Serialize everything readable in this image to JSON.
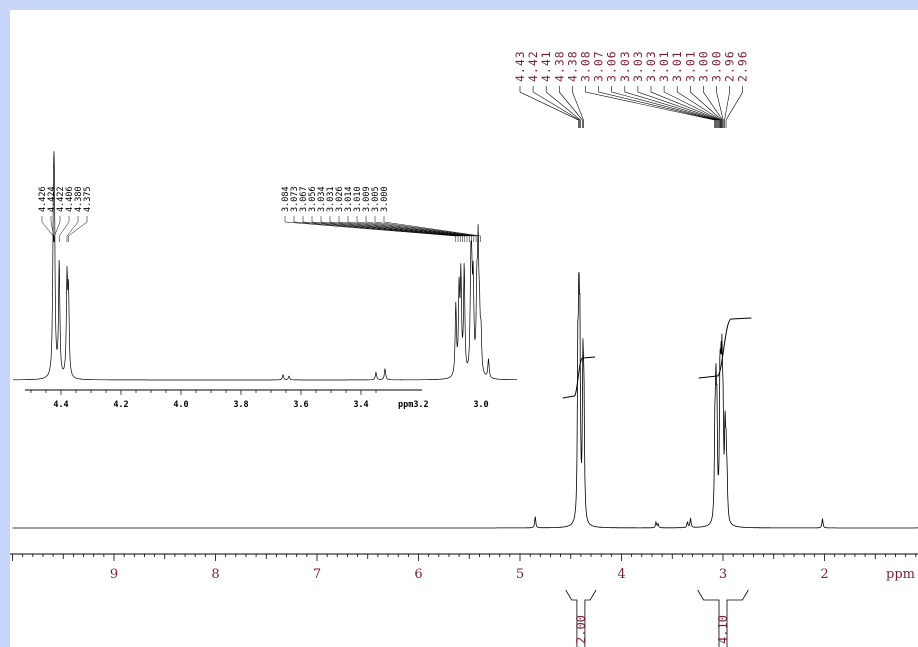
{
  "chart_data": [
    {
      "type": "line",
      "title": "",
      "xlabel": "ppm",
      "ylabel": "",
      "xlim": [
        10.0,
        0.95
      ],
      "x_reversed": true,
      "grid": false,
      "x_ticks": [
        "9",
        "8",
        "7",
        "6",
        "5",
        "4",
        "3",
        "2"
      ],
      "peaks": [
        {
          "x": 4.85,
          "y": 0.06
        },
        {
          "x": 4.43,
          "y": 0.75
        },
        {
          "x": 4.42,
          "y": 0.95
        },
        {
          "x": 4.41,
          "y": 0.9
        },
        {
          "x": 4.38,
          "y": 0.8
        },
        {
          "x": 4.37,
          "y": 0.6
        },
        {
          "x": 3.66,
          "y": 0.03
        },
        {
          "x": 3.64,
          "y": 0.02
        },
        {
          "x": 3.35,
          "y": 0.03
        },
        {
          "x": 3.32,
          "y": 0.05
        },
        {
          "x": 3.08,
          "y": 0.45
        },
        {
          "x": 3.07,
          "y": 0.6
        },
        {
          "x": 3.06,
          "y": 0.5
        },
        {
          "x": 3.03,
          "y": 0.7
        },
        {
          "x": 3.02,
          "y": 0.55
        },
        {
          "x": 3.01,
          "y": 0.65
        },
        {
          "x": 3.0,
          "y": 0.5
        },
        {
          "x": 2.98,
          "y": 0.45
        },
        {
          "x": 2.97,
          "y": 0.3
        },
        {
          "x": 2.96,
          "y": 0.2
        },
        {
          "x": 2.02,
          "y": 0.05
        },
        {
          "x": 1.05,
          "y": 0.015
        },
        {
          "x": 1.0,
          "y": 0.015
        }
      ],
      "peak_labels": [
        "4.43",
        "4.42",
        "4.41",
        "4.38",
        "4.38",
        "3.08",
        "3.07",
        "3.06",
        "3.03",
        "3.03",
        "3.03",
        "3.01",
        "3.01",
        "3.01",
        "3.00",
        "3.00",
        "2.96",
        "2.96"
      ],
      "integrals": [
        {
          "from": 4.55,
          "to": 4.25,
          "value": "2.00"
        },
        {
          "from": 3.25,
          "to": 2.75,
          "value": "4.10"
        }
      ]
    },
    {
      "type": "line",
      "title": "",
      "xlabel": "ppm",
      "ylabel": "",
      "xlim": [
        4.56,
        2.88
      ],
      "x_reversed": true,
      "grid": false,
      "x_ticks": [
        "4.4",
        "4.2",
        "4.0",
        "3.8",
        "3.6",
        "3.4",
        "3.2",
        "3.0"
      ],
      "peaks": [
        {
          "x": 4.426,
          "y": 0.6
        },
        {
          "x": 4.424,
          "y": 0.8
        },
        {
          "x": 4.422,
          "y": 0.95
        },
        {
          "x": 4.406,
          "y": 0.9
        },
        {
          "x": 4.38,
          "y": 0.75
        },
        {
          "x": 4.375,
          "y": 0.62
        },
        {
          "x": 3.66,
          "y": 0.04
        },
        {
          "x": 3.64,
          "y": 0.03
        },
        {
          "x": 3.35,
          "y": 0.06
        },
        {
          "x": 3.32,
          "y": 0.09
        },
        {
          "x": 3.084,
          "y": 0.55
        },
        {
          "x": 3.073,
          "y": 0.65
        },
        {
          "x": 3.067,
          "y": 0.75
        },
        {
          "x": 3.056,
          "y": 0.85
        },
        {
          "x": 3.034,
          "y": 0.7
        },
        {
          "x": 3.031,
          "y": 0.6
        },
        {
          "x": 3.026,
          "y": 0.68
        },
        {
          "x": 3.014,
          "y": 0.58
        },
        {
          "x": 3.01,
          "y": 0.52
        },
        {
          "x": 3.009,
          "y": 0.45
        },
        {
          "x": 3.005,
          "y": 0.38
        },
        {
          "x": 3.0,
          "y": 0.3
        },
        {
          "x": 2.975,
          "y": 0.15
        }
      ],
      "peak_labels": [
        "4.426",
        "4.424",
        "4.422",
        "4.406",
        "4.380",
        "4.375",
        "3.084",
        "3.073",
        "3.067",
        "3.056",
        "3.034",
        "3.031",
        "3.026",
        "3.014",
        "3.010",
        "3.009",
        "3.005",
        "3.000"
      ]
    }
  ]
}
